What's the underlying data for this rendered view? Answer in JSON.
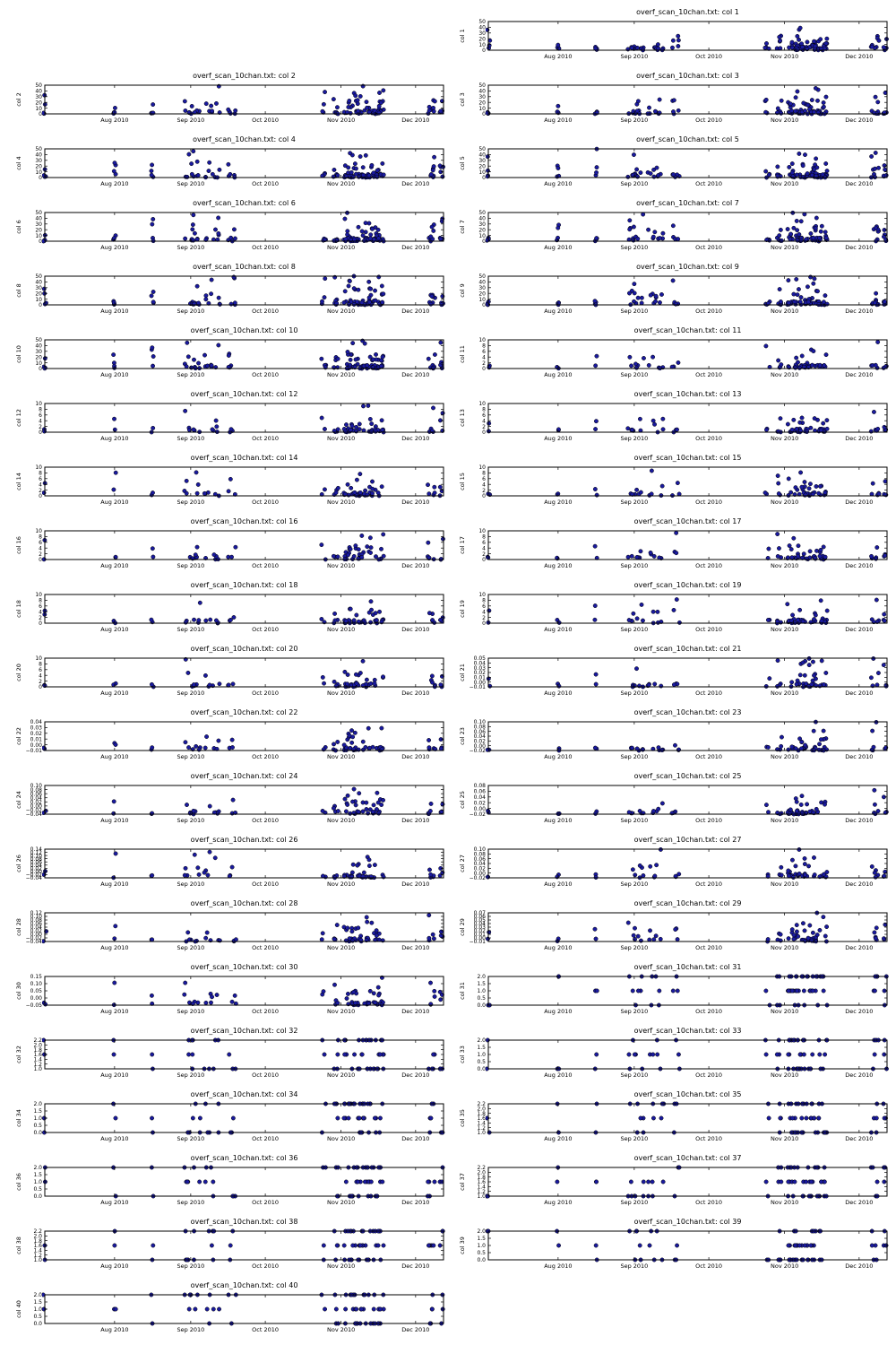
{
  "figure": {
    "x_ticks": [
      "Aug 2010",
      "Sep 2010",
      "Oct 2010",
      "Nov 2010",
      "Dec 2010"
    ],
    "point_color": "#1a1a9e",
    "point_edge": "#000000"
  },
  "chart_data": [
    {
      "type": "scatter",
      "title": "overf_scan_10chan.txt:  col 1",
      "ylabel": "col 1",
      "yticks": [
        "0",
        "10",
        "20",
        "30",
        "40",
        "50"
      ],
      "ylim": [
        0,
        50
      ]
    },
    {
      "type": "scatter",
      "title": "overf_scan_10chan.txt:  col 2",
      "ylabel": "col 2",
      "yticks": [
        "0",
        "10",
        "20",
        "30",
        "40",
        "50"
      ],
      "ylim": [
        0,
        50
      ]
    },
    {
      "type": "scatter",
      "title": "overf_scan_10chan.txt:  col 3",
      "ylabel": "col 3",
      "yticks": [
        "0",
        "10",
        "20",
        "30",
        "40",
        "50"
      ],
      "ylim": [
        0,
        50
      ]
    },
    {
      "type": "scatter",
      "title": "overf_scan_10chan.txt:  col 4",
      "ylabel": "col 4",
      "yticks": [
        "0",
        "10",
        "20",
        "30",
        "40",
        "50"
      ],
      "ylim": [
        0,
        50
      ]
    },
    {
      "type": "scatter",
      "title": "overf_scan_10chan.txt:  col 5",
      "ylabel": "col 5",
      "yticks": [
        "0",
        "10",
        "20",
        "30",
        "40",
        "50"
      ],
      "ylim": [
        0,
        50
      ]
    },
    {
      "type": "scatter",
      "title": "overf_scan_10chan.txt:  col 6",
      "ylabel": "col 6",
      "yticks": [
        "0",
        "10",
        "20",
        "30",
        "40",
        "50"
      ],
      "ylim": [
        0,
        50
      ]
    },
    {
      "type": "scatter",
      "title": "overf_scan_10chan.txt:  col 7",
      "ylabel": "col 7",
      "yticks": [
        "0",
        "10",
        "20",
        "30",
        "40",
        "50"
      ],
      "ylim": [
        0,
        50
      ]
    },
    {
      "type": "scatter",
      "title": "overf_scan_10chan.txt:  col 8",
      "ylabel": "col 8",
      "yticks": [
        "0",
        "10",
        "20",
        "30",
        "40",
        "50"
      ],
      "ylim": [
        0,
        50
      ]
    },
    {
      "type": "scatter",
      "title": "overf_scan_10chan.txt:  col 9",
      "ylabel": "col 9",
      "yticks": [
        "0",
        "10",
        "20",
        "30",
        "40",
        "50"
      ],
      "ylim": [
        0,
        50
      ]
    },
    {
      "type": "scatter",
      "title": "overf_scan_10chan.txt:  col 10",
      "ylabel": "col 10",
      "yticks": [
        "0",
        "10",
        "20",
        "30",
        "40",
        "50"
      ],
      "ylim": [
        0,
        50
      ]
    },
    {
      "type": "scatter",
      "title": "overf_scan_10chan.txt:  col 11",
      "ylabel": "col 11",
      "yticks": [
        "0",
        "2",
        "4",
        "6",
        "8",
        "10"
      ],
      "ylim": [
        0,
        10
      ]
    },
    {
      "type": "scatter",
      "title": "overf_scan_10chan.txt:  col 12",
      "ylabel": "col 12",
      "yticks": [
        "0",
        "2",
        "4",
        "6",
        "8",
        "10"
      ],
      "ylim": [
        0,
        10
      ]
    },
    {
      "type": "scatter",
      "title": "overf_scan_10chan.txt:  col 13",
      "ylabel": "col 13",
      "yticks": [
        "0",
        "2",
        "4",
        "6",
        "8",
        "10"
      ],
      "ylim": [
        0,
        10
      ]
    },
    {
      "type": "scatter",
      "title": "overf_scan_10chan.txt:  col 14",
      "ylabel": "col 14",
      "yticks": [
        "0",
        "2",
        "4",
        "6",
        "8",
        "10"
      ],
      "ylim": [
        0,
        10
      ]
    },
    {
      "type": "scatter",
      "title": "overf_scan_10chan.txt:  col 15",
      "ylabel": "col 15",
      "yticks": [
        "0",
        "2",
        "4",
        "6",
        "8",
        "10"
      ],
      "ylim": [
        0,
        10
      ]
    },
    {
      "type": "scatter",
      "title": "overf_scan_10chan.txt:  col 16",
      "ylabel": "col 16",
      "yticks": [
        "0",
        "2",
        "4",
        "6",
        "8",
        "10"
      ],
      "ylim": [
        0,
        10
      ]
    },
    {
      "type": "scatter",
      "title": "overf_scan_10chan.txt:  col 17",
      "ylabel": "col 17",
      "yticks": [
        "0",
        "2",
        "4",
        "6",
        "8",
        "10"
      ],
      "ylim": [
        0,
        10
      ]
    },
    {
      "type": "scatter",
      "title": "overf_scan_10chan.txt:  col 18",
      "ylabel": "col 18",
      "yticks": [
        "0",
        "2",
        "4",
        "6",
        "8",
        "10"
      ],
      "ylim": [
        0,
        10
      ]
    },
    {
      "type": "scatter",
      "title": "overf_scan_10chan.txt:  col 19",
      "ylabel": "col 19",
      "yticks": [
        "0",
        "2",
        "4",
        "6",
        "8",
        "10"
      ],
      "ylim": [
        0,
        10
      ]
    },
    {
      "type": "scatter",
      "title": "overf_scan_10chan.txt:  col 20",
      "ylabel": "col 20",
      "yticks": [
        "0",
        "2",
        "4",
        "6",
        "8",
        "10"
      ],
      "ylim": [
        0,
        10
      ]
    },
    {
      "type": "scatter",
      "title": "overf_scan_10chan.txt:  col 21",
      "ylabel": "col 21",
      "yticks": [
        "−0.01",
        "0.00",
        "0.01",
        "0.02",
        "0.03",
        "0.04",
        "0.05"
      ],
      "ylim": [
        -0.01,
        0.05
      ]
    },
    {
      "type": "scatter",
      "title": "overf_scan_10chan.txt:  col 22",
      "ylabel": "col 22",
      "yticks": [
        "−0.01",
        "0.00",
        "0.01",
        "0.02",
        "0.03",
        "0.04"
      ],
      "ylim": [
        -0.01,
        0.04
      ]
    },
    {
      "type": "scatter",
      "title": "overf_scan_10chan.txt:  col 23",
      "ylabel": "col 23",
      "yticks": [
        "−0.02",
        "0.00",
        "0.02",
        "0.04",
        "0.06",
        "0.08",
        "0.10"
      ],
      "ylim": [
        -0.02,
        0.1
      ]
    },
    {
      "type": "scatter",
      "title": "overf_scan_10chan.txt:  col 24",
      "ylabel": "col 24",
      "yticks": [
        "−0.04",
        "−0.02",
        "0.00",
        "0.02",
        "0.04",
        "0.06",
        "0.08",
        "0.10"
      ],
      "ylim": [
        -0.04,
        0.1
      ]
    },
    {
      "type": "scatter",
      "title": "overf_scan_10chan.txt:  col 25",
      "ylabel": "col 25",
      "yticks": [
        "−0.02",
        "0.00",
        "0.02",
        "0.04",
        "0.06",
        "0.08"
      ],
      "ylim": [
        -0.02,
        0.08
      ]
    },
    {
      "type": "scatter",
      "title": "overf_scan_10chan.txt:  col 26",
      "ylabel": "col 26",
      "yticks": [
        "−0.04",
        "−0.02",
        "0.00",
        "0.02",
        "0.04",
        "0.06",
        "0.08",
        "0.10",
        "0.12",
        "0.14"
      ],
      "ylim": [
        -0.04,
        0.14
      ]
    },
    {
      "type": "scatter",
      "title": "overf_scan_10chan.txt:  col 27",
      "ylabel": "col 27",
      "yticks": [
        "−0.02",
        "0.00",
        "0.02",
        "0.04",
        "0.06",
        "0.08",
        "0.10"
      ],
      "ylim": [
        -0.02,
        0.1
      ]
    },
    {
      "type": "scatter",
      "title": "overf_scan_10chan.txt:  col 28",
      "ylabel": "col 28",
      "yticks": [
        "−0.04",
        "−0.02",
        "0.00",
        "0.02",
        "0.04",
        "0.06",
        "0.08",
        "0.10",
        "0.12"
      ],
      "ylim": [
        -0.04,
        0.12
      ]
    },
    {
      "type": "scatter",
      "title": "overf_scan_10chan.txt:  col 29",
      "ylabel": "col 29",
      "yticks": [
        "−0.01",
        "0.00",
        "0.01",
        "0.02",
        "0.03",
        "0.04",
        "0.05",
        "0.06",
        "0.07"
      ],
      "ylim": [
        -0.01,
        0.07
      ]
    },
    {
      "type": "scatter",
      "title": "overf_scan_10chan.txt:  col 30",
      "ylabel": "col 30",
      "yticks": [
        "−0.05",
        "0.00",
        "0.05",
        "0.10",
        "0.15"
      ],
      "ylim": [
        -0.05,
        0.15
      ]
    },
    {
      "type": "scatter",
      "title": "overf_scan_10chan.txt:  col 31",
      "ylabel": "col 31",
      "yticks": [
        "0.0",
        "0.5",
        "1.0",
        "1.5",
        "2.0"
      ],
      "ylim": [
        0,
        2
      ]
    },
    {
      "type": "scatter",
      "title": "overf_scan_10chan.txt:  col 32",
      "ylabel": "col 32",
      "yticks": [
        "1.0",
        "1.2",
        "1.4",
        "1.6",
        "1.8",
        "2.0",
        "2.2"
      ],
      "ylim": [
        1.0,
        2.2
      ]
    },
    {
      "type": "scatter",
      "title": "overf_scan_10chan.txt:  col 33",
      "ylabel": "col 33",
      "yticks": [
        "0.0",
        "0.5",
        "1.0",
        "1.5",
        "2.0"
      ],
      "ylim": [
        0,
        2
      ]
    },
    {
      "type": "scatter",
      "title": "overf_scan_10chan.txt:  col 34",
      "ylabel": "col 34",
      "yticks": [
        "0.0",
        "0.5",
        "1.0",
        "1.5",
        "2.0"
      ],
      "ylim": [
        0,
        2
      ]
    },
    {
      "type": "scatter",
      "title": "overf_scan_10chan.txt:  col 35",
      "ylabel": "col 35",
      "yticks": [
        "1.0",
        "1.2",
        "1.4",
        "1.6",
        "1.8",
        "2.0",
        "2.2"
      ],
      "ylim": [
        1.0,
        2.2
      ]
    },
    {
      "type": "scatter",
      "title": "overf_scan_10chan.txt:  col 36",
      "ylabel": "col 36",
      "yticks": [
        "0.0",
        "0.5",
        "1.0",
        "1.5",
        "2.0"
      ],
      "ylim": [
        0,
        2
      ]
    },
    {
      "type": "scatter",
      "title": "overf_scan_10chan.txt:  col 37",
      "ylabel": "col 37",
      "yticks": [
        "1.0",
        "1.2",
        "1.4",
        "1.6",
        "1.8",
        "2.0",
        "2.2"
      ],
      "ylim": [
        1.0,
        2.2
      ]
    },
    {
      "type": "scatter",
      "title": "overf_scan_10chan.txt:  col 38",
      "ylabel": "col 38",
      "yticks": [
        "1.0",
        "1.2",
        "1.4",
        "1.6",
        "1.8",
        "2.0",
        "2.2"
      ],
      "ylim": [
        1.0,
        2.2
      ]
    },
    {
      "type": "scatter",
      "title": "overf_scan_10chan.txt:  col 39",
      "ylabel": "col 39",
      "yticks": [
        "0.0",
        "0.5",
        "1.0",
        "1.5",
        "2.0"
      ],
      "ylim": [
        0,
        2
      ]
    },
    {
      "type": "scatter",
      "title": "overf_scan_10chan.txt:  col 40",
      "ylabel": "col 40",
      "yticks": [
        "0.0",
        "0.5",
        "1.0",
        "1.5",
        "2.0"
      ],
      "ylim": [
        0,
        2
      ]
    }
  ]
}
